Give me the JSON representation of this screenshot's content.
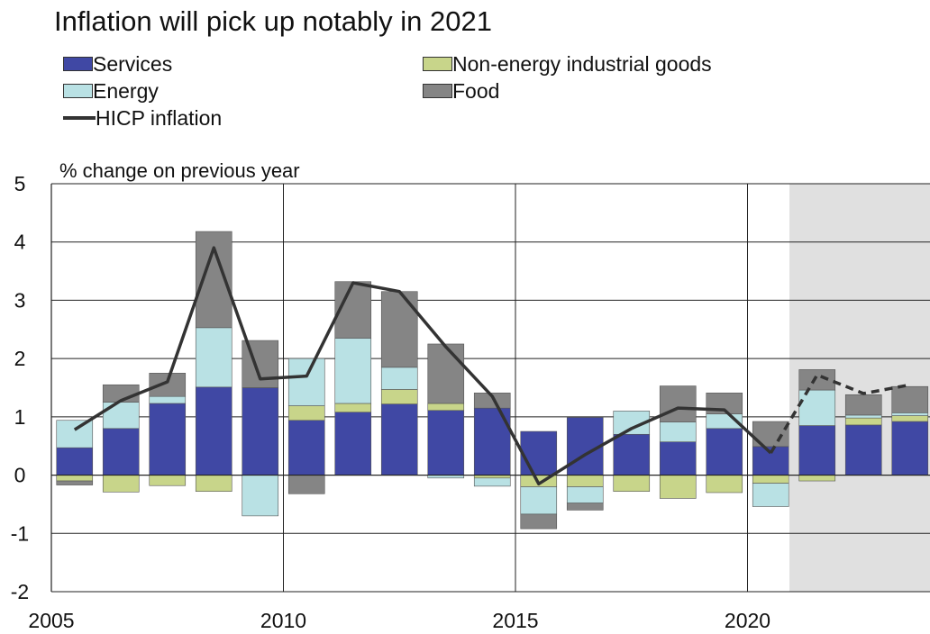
{
  "title": "Inflation will pick up notably in 2021",
  "legend": {
    "services": "Services",
    "ne_goods": "Non-energy industrial goods",
    "energy": "Energy",
    "food": "Food",
    "hicp": "HICP inflation"
  },
  "colors": {
    "services": "#4048a4",
    "ne_goods": "#c8d58a",
    "energy": "#b9e1e4",
    "food": "#858585",
    "hicp": "#333333",
    "projection_shade": "#e0e0e0"
  },
  "chart_data": {
    "type": "bar",
    "stacked": true,
    "ylabel": "% change on previous year",
    "ylim": [
      -2,
      5
    ],
    "yticks": [
      5,
      4,
      3,
      2,
      1,
      0,
      -1,
      -2
    ],
    "xticks": [
      "2005",
      "2010",
      "2015",
      "2020"
    ],
    "grid": true,
    "projection_start": "2021",
    "categories": [
      "2005",
      "2006",
      "2007",
      "2008",
      "2009",
      "2010",
      "2011",
      "2012",
      "2013",
      "2014",
      "2015",
      "2016",
      "2017",
      "2018",
      "2019",
      "2020",
      "2021",
      "2022",
      "2023"
    ],
    "series": [
      {
        "name": "Services",
        "key": "services",
        "values": [
          0.47,
          0.8,
          1.23,
          1.51,
          1.5,
          0.94,
          1.08,
          1.22,
          1.11,
          1.15,
          0.75,
          0.99,
          0.7,
          0.57,
          0.8,
          0.49,
          0.85,
          0.86,
          0.92
        ]
      },
      {
        "name": "Non-energy industrial goods",
        "key": "ne_goods",
        "values": [
          -0.1,
          -0.29,
          -0.18,
          -0.28,
          0.0,
          0.25,
          0.15,
          0.25,
          0.12,
          -0.05,
          -0.2,
          -0.2,
          -0.28,
          -0.4,
          -0.3,
          -0.14,
          -0.1,
          0.12,
          0.1
        ]
      },
      {
        "name": "Energy",
        "key": "energy",
        "values": [
          0.47,
          0.45,
          0.12,
          1.02,
          -0.7,
          0.81,
          1.12,
          0.38,
          -0.05,
          -0.14,
          -0.47,
          -0.28,
          0.4,
          0.34,
          0.25,
          -0.4,
          0.61,
          0.05,
          0.05
        ]
      },
      {
        "name": "Food",
        "key": "food",
        "values": [
          -0.07,
          0.3,
          0.4,
          1.65,
          0.81,
          -0.32,
          0.97,
          1.3,
          1.02,
          0.26,
          -0.25,
          -0.12,
          0.0,
          0.62,
          0.36,
          0.43,
          0.35,
          0.35,
          0.45
        ]
      }
    ],
    "hicp": {
      "name": "HICP inflation",
      "values": [
        0.78,
        1.28,
        1.6,
        3.9,
        1.65,
        1.7,
        3.3,
        3.15,
        2.2,
        1.35,
        -0.15,
        0.35,
        0.8,
        1.15,
        1.12,
        0.38,
        1.72,
        1.4,
        1.55
      ],
      "projected_from": "2020"
    }
  }
}
